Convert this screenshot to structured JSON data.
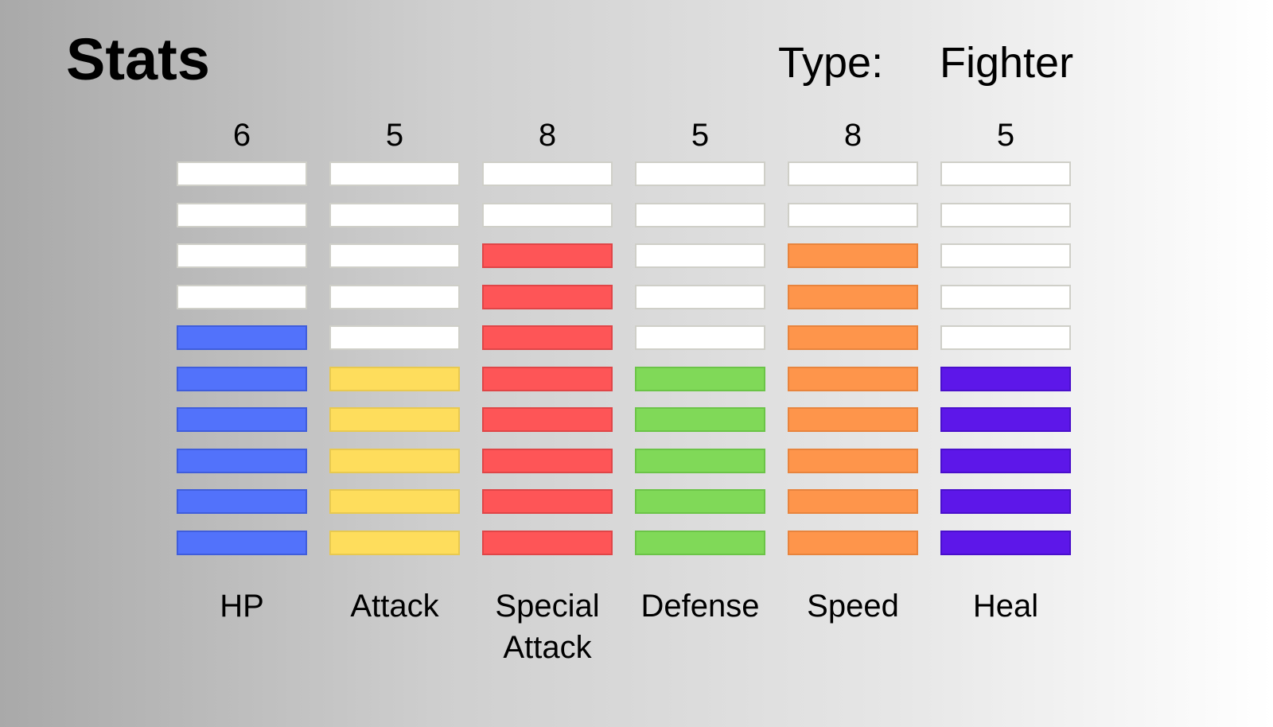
{
  "header": {
    "title": "Stats",
    "type_label": "Type:",
    "type_value": "Fighter"
  },
  "max_segments": 10,
  "stats": [
    {
      "label": "HP",
      "value": 6,
      "color": "#5272fb",
      "border": "#3f5ddc"
    },
    {
      "label": "Attack",
      "value": 5,
      "color": "#fedd5c",
      "border": "#e8c94f"
    },
    {
      "label": "Special\nAttack",
      "value": 8,
      "color": "#fe5557",
      "border": "#e04547"
    },
    {
      "label": "Defense",
      "value": 5,
      "color": "#80d958",
      "border": "#6bc447"
    },
    {
      "label": "Speed",
      "value": 8,
      "color": "#fe954b",
      "border": "#e8843d"
    },
    {
      "label": "Heal",
      "value": 5,
      "color": "#5d17e9",
      "border": "#4a0fcc"
    }
  ]
}
